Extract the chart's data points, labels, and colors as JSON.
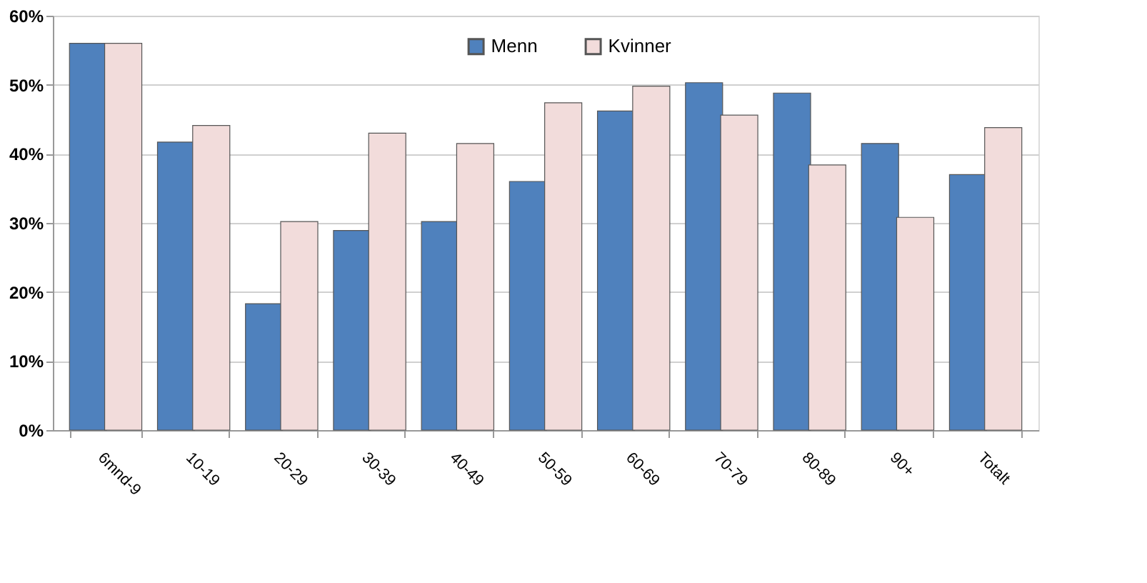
{
  "chart_data": {
    "type": "bar",
    "categories": [
      "6mnd-9",
      "10-19",
      "20-29",
      "30-39",
      "40-49",
      "50-59",
      "60-69",
      "70-79",
      "80-89",
      "90+",
      "Totalt"
    ],
    "series": [
      {
        "name": "Menn",
        "color": "#4f81bd",
        "values": [
          56,
          41.7,
          18.3,
          28.9,
          30.2,
          36,
          46.2,
          50.3,
          48.8,
          41.5,
          37
        ]
      },
      {
        "name": "Kvinner",
        "color": "#f2dcdb",
        "values": [
          56,
          44.1,
          30.2,
          43,
          41.5,
          47.4,
          49.8,
          45.6,
          38.4,
          30.8,
          43.8
        ]
      }
    ],
    "ylim": [
      0,
      60
    ],
    "yticks": [
      {
        "value": 0,
        "label": "0%"
      },
      {
        "value": 10,
        "label": "10%"
      },
      {
        "value": 20,
        "label": "20%"
      },
      {
        "value": 30,
        "label": "30%"
      },
      {
        "value": 40,
        "label": "40%"
      },
      {
        "value": 50,
        "label": "50%"
      },
      {
        "value": 60,
        "label": "60%"
      }
    ],
    "grid": "y",
    "legend": "top"
  }
}
